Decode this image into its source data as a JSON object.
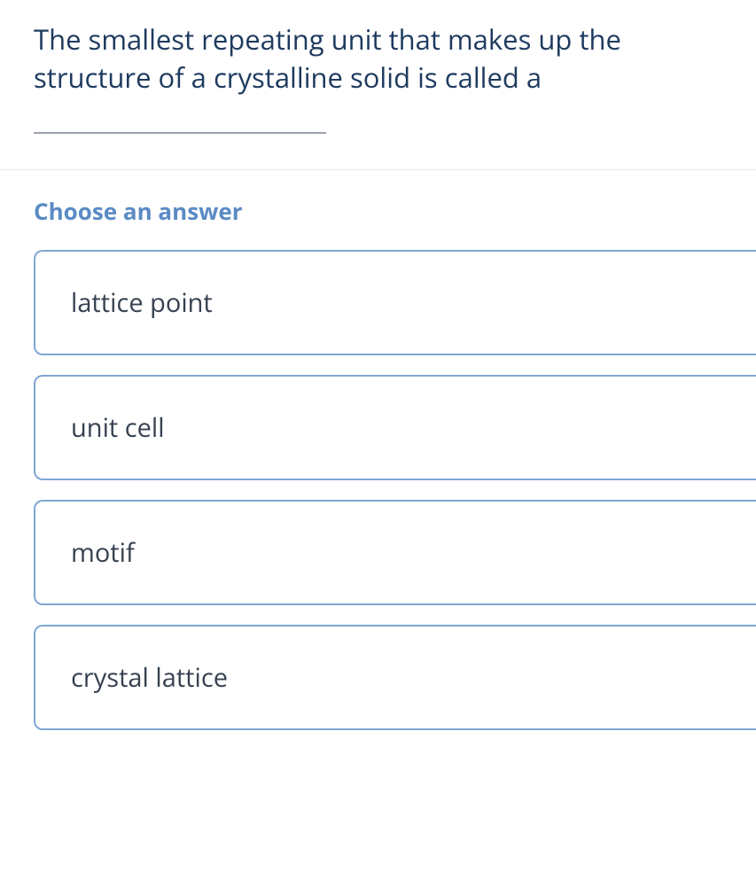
{
  "question": {
    "text": "The smallest repeating unit that makes up the structure of a crystalline solid is called a",
    "text_color": "#1e3a5f",
    "fontsize": 31
  },
  "answer_prompt": {
    "label": "Choose an answer",
    "color": "#5b8bc4",
    "fontsize": 26
  },
  "options": [
    {
      "label": "lattice point"
    },
    {
      "label": "unit cell"
    },
    {
      "label": "motif"
    },
    {
      "label": "crystal lattice"
    }
  ],
  "styling": {
    "option_border_color": "#7fa7d4",
    "option_text_color": "#374151",
    "option_fontsize": 29,
    "divider_color": "#e5e7eb",
    "blank_line_color": "#9ca3af",
    "background_color": "#ffffff"
  }
}
